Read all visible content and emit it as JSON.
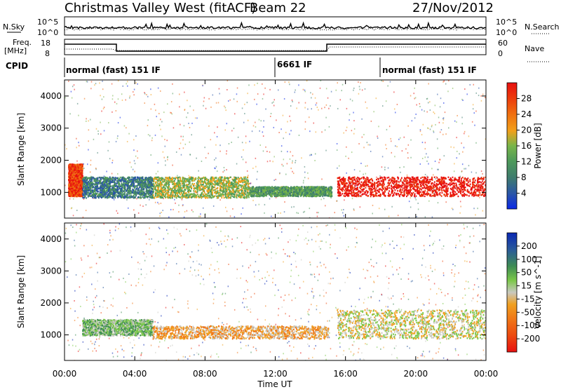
{
  "header": {
    "title": "Christmas Valley West (fitACF)",
    "beam": "Beam 22",
    "date": "27/Nov/2012"
  },
  "top_panel": {
    "left_label": "N.Sky",
    "right_label": "N.Search",
    "left_ticks": [
      "10^5",
      "10^0"
    ],
    "right_ticks": [
      "10^5",
      "10^0"
    ]
  },
  "freq_panel": {
    "left_label_1": "Freq.",
    "left_label_2": "[MHz]",
    "right_label": "Nave",
    "left_ticks": [
      "18",
      "8"
    ],
    "right_ticks": [
      "60",
      "0"
    ]
  },
  "cpid_panel": {
    "label": "CPID",
    "modes": [
      "normal (fast) 151 IF",
      "6661 IF",
      "normal (fast) 151 IF"
    ]
  },
  "colors": {
    "background": "#ffffff",
    "axis": "#000000"
  },
  "chart_data": [
    {
      "type": "heatmap",
      "title": "",
      "xlabel": "Time UT",
      "ylabel": "Slant Range [km]",
      "x_ticks": [
        "00:00",
        "04:00",
        "08:00",
        "12:00",
        "16:00",
        "20:00",
        "00:00"
      ],
      "y_ticks": [
        1000,
        2000,
        3000,
        4000
      ],
      "ylim": [
        200,
        4500
      ],
      "colorbar": {
        "label": "Power [dB]",
        "ticks": [
          4,
          8,
          12,
          16,
          20,
          24,
          28
        ],
        "colors": [
          "#0a28e6",
          "#2a55a8",
          "#3f7c6d",
          "#4e9a5a",
          "#78b54a",
          "#f2a01a",
          "#f07010",
          "#ec3a0c",
          "#e81010"
        ]
      },
      "bands": [
        {
          "x": [
            0.2,
            1.0
          ],
          "y": [
            900,
            1900
          ],
          "level": 7
        },
        {
          "x": [
            1.0,
            5.0
          ],
          "y": [
            850,
            1500
          ],
          "level": 2
        },
        {
          "x": [
            5.0,
            10.5
          ],
          "y": [
            850,
            1500
          ],
          "level": 4
        },
        {
          "x": [
            10.5,
            15.2
          ],
          "y": [
            900,
            1200
          ],
          "level": 3
        },
        {
          "x": [
            15.5,
            24.0
          ],
          "y": [
            900,
            1500
          ],
          "level": 8
        }
      ]
    },
    {
      "type": "heatmap",
      "title": "",
      "xlabel": "Time UT",
      "ylabel": "Slant Range [km]",
      "x_ticks": [
        "00:00",
        "04:00",
        "08:00",
        "12:00",
        "16:00",
        "20:00",
        "00:00"
      ],
      "y_ticks": [
        1000,
        2000,
        3000,
        4000
      ],
      "ylim": [
        200,
        4500
      ],
      "colorbar": {
        "label": "Velocity [m s^-1]",
        "ticks": [
          200,
          100,
          50,
          15,
          -15,
          -50,
          -100,
          -200
        ],
        "colors": [
          "#0a28b4",
          "#2a5a9a",
          "#3e8c54",
          "#7cc84a",
          "#c8c8c0",
          "#f0a020",
          "#f07818",
          "#ec4a10",
          "#e81010"
        ]
      },
      "bands": [
        {
          "x": [
            1.0,
            5.0
          ],
          "y": [
            1000,
            1500
          ],
          "level": 3
        },
        {
          "x": [
            5.0,
            15.0
          ],
          "y": [
            900,
            1300
          ],
          "level": 5
        },
        {
          "x": [
            15.5,
            24.0
          ],
          "y": [
            900,
            1800
          ],
          "level": 4
        }
      ]
    }
  ]
}
